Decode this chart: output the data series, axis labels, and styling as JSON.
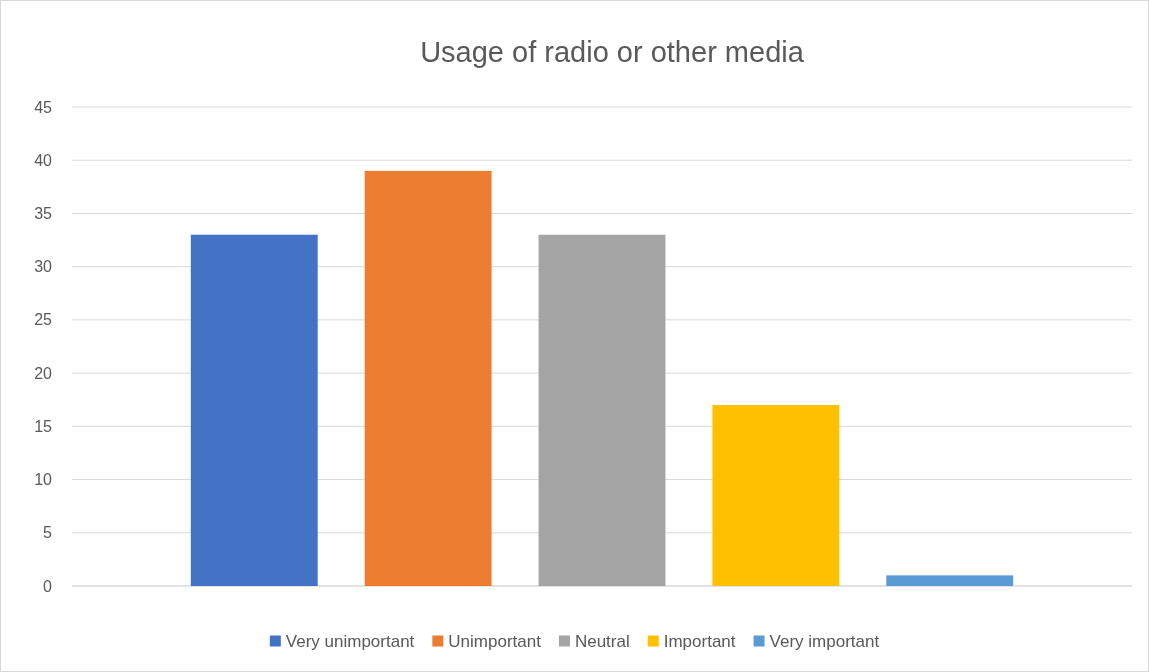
{
  "chart_data": {
    "type": "bar",
    "title": "Usage of radio or other media",
    "categories": [
      null
    ],
    "series": [
      {
        "name": "Very unimportant",
        "color": "#4472c4",
        "values": [
          33
        ]
      },
      {
        "name": "Unimportant",
        "color": "#ed7d31",
        "values": [
          39
        ]
      },
      {
        "name": "Neutral",
        "color": "#a5a5a5",
        "values": [
          33
        ]
      },
      {
        "name": "Important",
        "color": "#ffc000",
        "values": [
          17
        ]
      },
      {
        "name": "Very important",
        "color": "#5b9bd5",
        "values": [
          1
        ]
      }
    ],
    "ylim": [
      0,
      45
    ],
    "yticks": [
      0,
      5,
      10,
      15,
      20,
      25,
      30,
      35,
      40,
      45
    ],
    "grid": "y",
    "legend": "bottom"
  }
}
